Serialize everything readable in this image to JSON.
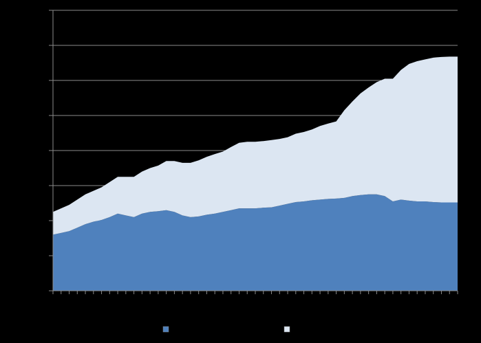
{
  "chart_data": {
    "type": "area",
    "stacked": true,
    "title": "",
    "xlabel": "",
    "ylabel": "",
    "grid": true,
    "legend_position": "bottom",
    "ylim": [
      0,
      8
    ],
    "yticks": [
      0,
      1,
      2,
      3,
      4,
      5,
      6,
      7,
      8
    ],
    "x_count": 51,
    "series": [
      {
        "color": "#4f81bd",
        "values": [
          1.6,
          1.65,
          1.7,
          1.8,
          1.9,
          1.97,
          2.02,
          2.1,
          2.2,
          2.15,
          2.1,
          2.2,
          2.25,
          2.27,
          2.3,
          2.25,
          2.15,
          2.1,
          2.12,
          2.17,
          2.2,
          2.25,
          2.3,
          2.35,
          2.35,
          2.35,
          2.37,
          2.38,
          2.43,
          2.48,
          2.53,
          2.55,
          2.58,
          2.6,
          2.62,
          2.63,
          2.65,
          2.7,
          2.73,
          2.75,
          2.75,
          2.7,
          2.55,
          2.6,
          2.57,
          2.55,
          2.55,
          2.53,
          2.52,
          2.52,
          2.52
        ]
      },
      {
        "color": "#dce6f2",
        "values": [
          0.65,
          0.7,
          0.75,
          0.8,
          0.85,
          0.88,
          0.93,
          1.0,
          1.05,
          1.1,
          1.15,
          1.2,
          1.25,
          1.3,
          1.4,
          1.45,
          1.5,
          1.55,
          1.6,
          1.65,
          1.7,
          1.72,
          1.8,
          1.87,
          1.9,
          1.9,
          1.9,
          1.92,
          1.9,
          1.9,
          1.95,
          1.98,
          2.02,
          2.1,
          2.15,
          2.2,
          2.5,
          2.7,
          2.9,
          3.05,
          3.2,
          3.35,
          3.5,
          3.7,
          3.9,
          4.0,
          4.05,
          4.12,
          4.15,
          4.16,
          4.16
        ]
      }
    ]
  }
}
